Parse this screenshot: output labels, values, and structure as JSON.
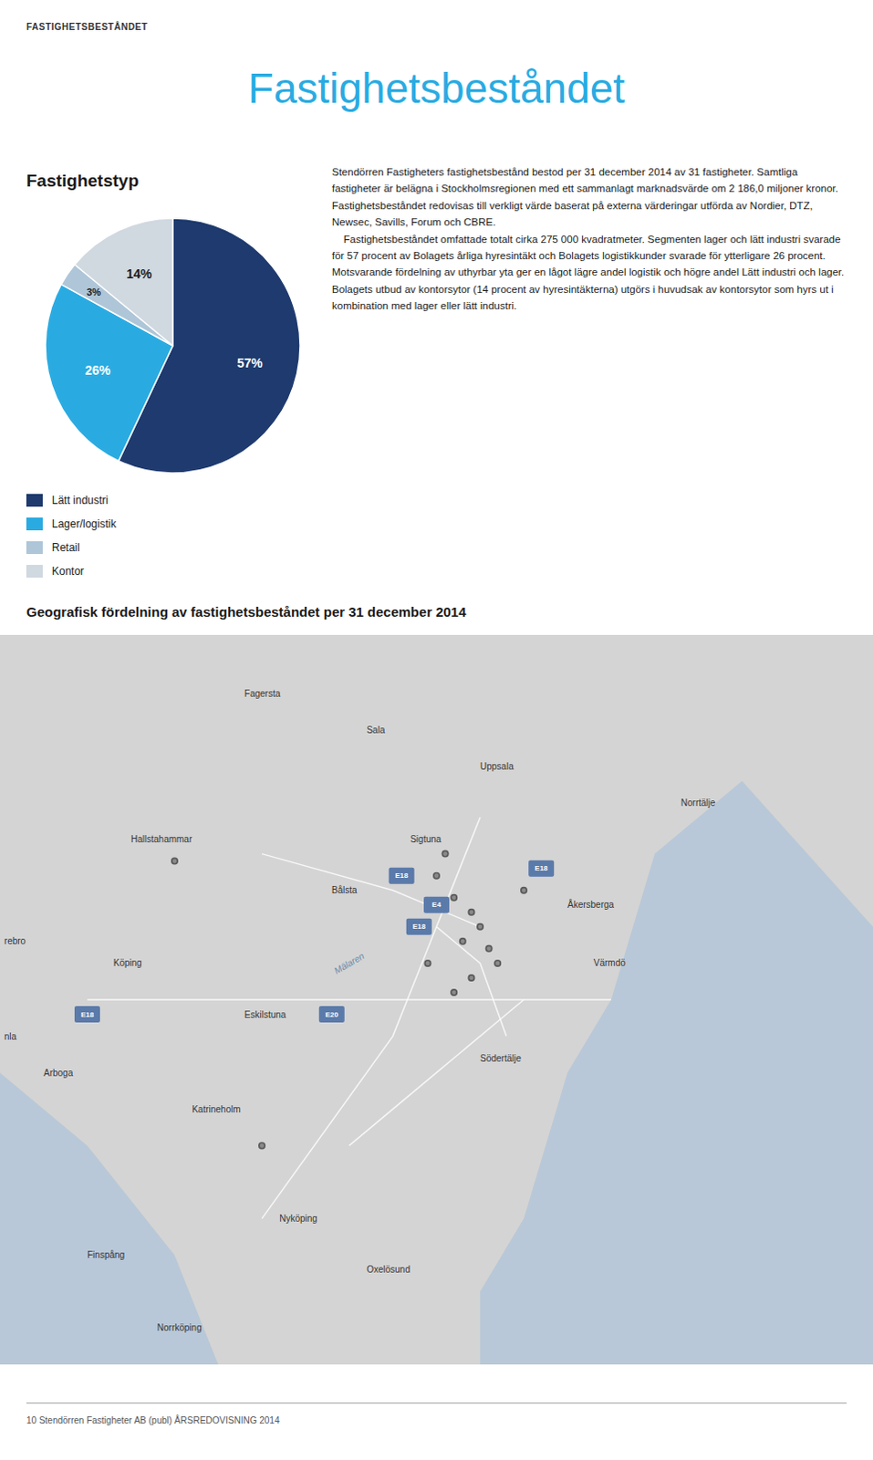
{
  "chart_data": {
    "type": "pie",
    "title": "Fastighetsbeståndet",
    "subtitle": "Fastighetstyp",
    "categories": [
      "Lätt industri",
      "Lager/logistik",
      "Retail",
      "Kontor"
    ],
    "values": [
      57,
      26,
      3,
      14
    ],
    "value_labels": [
      "57%",
      "26%",
      "3%",
      "14%"
    ],
    "colors": [
      "#1e3a6e",
      "#29abe2",
      "#aec6d8",
      "#d0d8e0"
    ],
    "data_labels": true,
    "legend": "bottom",
    "annotations": [
      "FASTIGHETSBESTÅNDET",
      "Stendörren Fastigheters fastighetsbestånd bestod per 31 december 2014 av 31 fastigheter. Samtliga fastigheter är belägna i Stockholmsregionen med ett sammanlagt marknadsvärde om 2 186,0 miljoner kronor. Fastighetsbeståndet redovisas till verkligt värde baserat på externa värderingar utförda av Nordier, DTZ, Newsec, Savills, Forum och CBRE.\n    Fastighetsbeståndet omfattade totalt cirka 275 000 kvadratmeter. Segmenten lager och lätt industri svarade för 57 procent av Bolagets årliga hyresintäkt och Bolagets logistikkunder svarade för ytterligare 26 procent. Motsvarande fördelning av uthyrbar yta ger en lågot lägre andel logistik och högre andel Lätt industri och lager. Bolagets utbud av kontorsytor (14 procent av hyresintäkterna) utgörs i huvudsak av kontorsytor som hyrs ut i kombination med lager eller lätt industri.",
      "Geografisk fördelning av fastighetsbeståndet per 31 december 2014",
      "Mälaren",
      "Fagersta",
      "Sala",
      "Uppsala",
      "Norrtälje",
      "Hallstahammar",
      "Sigtuna",
      "Bålsta",
      "Åkersberga",
      "Köping",
      "Eskilstuna",
      "Södertälje",
      "Värmdö",
      "Arboga",
      "Katrineholm",
      "Nyköping",
      "Oxelösund",
      "Finspång",
      "Norrköping",
      "rebro",
      "nla",
      "E18",
      "E18",
      "E4",
      "E20",
      "E18",
      "E18",
      "10  Stendörren Fastigheter AB (publ)  ÅRSREDOVISNING 2014"
    ]
  }
}
